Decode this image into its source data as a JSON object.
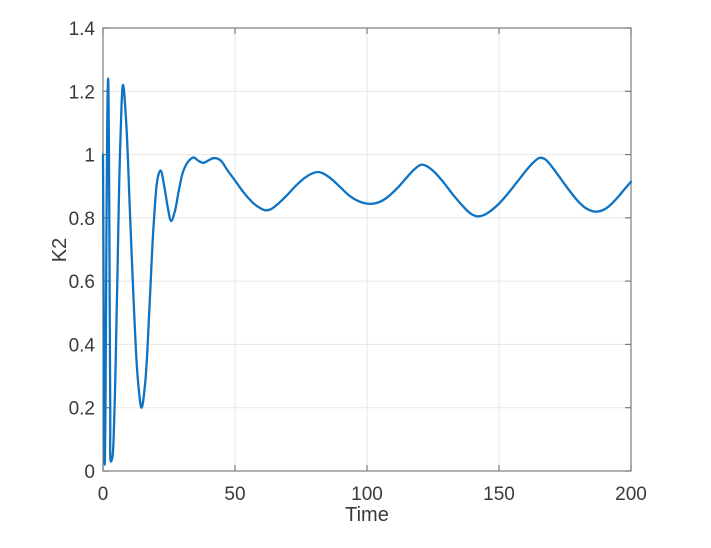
{
  "chart_data": {
    "type": "line",
    "title": "",
    "xlabel": "Time",
    "ylabel": "K2",
    "xlim": [
      0,
      200
    ],
    "ylim": [
      0,
      1.4
    ],
    "x_ticks": [
      0,
      50,
      100,
      150,
      200
    ],
    "x_tick_labels": [
      "0",
      "50",
      "100",
      "150",
      "200"
    ],
    "y_ticks": [
      0,
      0.2,
      0.4,
      0.6,
      0.8,
      1.0,
      1.2,
      1.4
    ],
    "y_tick_labels": [
      "0",
      "0.2",
      "0.4",
      "0.6",
      "0.8",
      "1",
      "1.2",
      "1.4"
    ],
    "grid": true,
    "legend": "none",
    "line_color": "#0f73c4",
    "axis_color": "#7b7b7b",
    "grid_color": "#e7e7e7",
    "text_color": "#3a3a3a",
    "line_width": 2.3,
    "series": [
      {
        "name": "K2",
        "points": [
          [
            0,
            1.0
          ],
          [
            0.2,
            0.62
          ],
          [
            0.45,
            0.15
          ],
          [
            0.65,
            0.02
          ],
          [
            0.95,
            0.22
          ],
          [
            1.3,
            0.75
          ],
          [
            1.65,
            1.13
          ],
          [
            1.95,
            1.24
          ],
          [
            2.2,
            1.08
          ],
          [
            2.5,
            0.6
          ],
          [
            2.75,
            0.18
          ],
          [
            3.0,
            0.03
          ],
          [
            3.5,
            0.04
          ],
          [
            4.3,
            0.18
          ],
          [
            5.3,
            0.55
          ],
          [
            6.5,
            1.02
          ],
          [
            7.6,
            1.22
          ],
          [
            8.8,
            1.1
          ],
          [
            10.2,
            0.82
          ],
          [
            11.8,
            0.5
          ],
          [
            13.2,
            0.29
          ],
          [
            14.6,
            0.2
          ],
          [
            16.0,
            0.28
          ],
          [
            17.5,
            0.5
          ],
          [
            19.2,
            0.78
          ],
          [
            20.8,
            0.93
          ],
          [
            21.8,
            0.95
          ],
          [
            23.2,
            0.9
          ],
          [
            24.6,
            0.83
          ],
          [
            25.8,
            0.79
          ],
          [
            27.2,
            0.82
          ],
          [
            28.8,
            0.89
          ],
          [
            30.5,
            0.95
          ],
          [
            32.5,
            0.98
          ],
          [
            34.3,
            0.991
          ],
          [
            36.2,
            0.98
          ],
          [
            38.0,
            0.974
          ],
          [
            40.0,
            0.982
          ],
          [
            42.0,
            0.989
          ],
          [
            44.5,
            0.982
          ],
          [
            47.0,
            0.952
          ],
          [
            50.0,
            0.918
          ],
          [
            53.5,
            0.878
          ],
          [
            57.0,
            0.846
          ],
          [
            59.5,
            0.831
          ],
          [
            61.5,
            0.824
          ],
          [
            63.5,
            0.827
          ],
          [
            66.0,
            0.842
          ],
          [
            69.5,
            0.87
          ],
          [
            73.0,
            0.901
          ],
          [
            76.5,
            0.927
          ],
          [
            79.5,
            0.941
          ],
          [
            81.5,
            0.945
          ],
          [
            83.5,
            0.94
          ],
          [
            86.5,
            0.923
          ],
          [
            90.0,
            0.896
          ],
          [
            93.5,
            0.869
          ],
          [
            97.0,
            0.852
          ],
          [
            100.0,
            0.845
          ],
          [
            102.5,
            0.845
          ],
          [
            105.0,
            0.851
          ],
          [
            108.0,
            0.867
          ],
          [
            111.5,
            0.894
          ],
          [
            115.0,
            0.927
          ],
          [
            118.0,
            0.954
          ],
          [
            120.5,
            0.968
          ],
          [
            122.5,
            0.964
          ],
          [
            125.5,
            0.945
          ],
          [
            129.0,
            0.912
          ],
          [
            132.5,
            0.874
          ],
          [
            136.0,
            0.84
          ],
          [
            139.0,
            0.815
          ],
          [
            141.5,
            0.805
          ],
          [
            144.0,
            0.808
          ],
          [
            146.5,
            0.82
          ],
          [
            150.0,
            0.845
          ],
          [
            153.5,
            0.878
          ],
          [
            157.0,
            0.915
          ],
          [
            160.5,
            0.952
          ],
          [
            163.0,
            0.975
          ],
          [
            165.5,
            0.99
          ],
          [
            167.5,
            0.985
          ],
          [
            170.0,
            0.962
          ],
          [
            173.0,
            0.928
          ],
          [
            176.5,
            0.888
          ],
          [
            180.0,
            0.852
          ],
          [
            183.0,
            0.83
          ],
          [
            185.5,
            0.821
          ],
          [
            187.5,
            0.82
          ],
          [
            190.0,
            0.827
          ],
          [
            192.5,
            0.843
          ],
          [
            195.0,
            0.865
          ],
          [
            197.5,
            0.89
          ],
          [
            200.0,
            0.914
          ]
        ]
      }
    ]
  }
}
